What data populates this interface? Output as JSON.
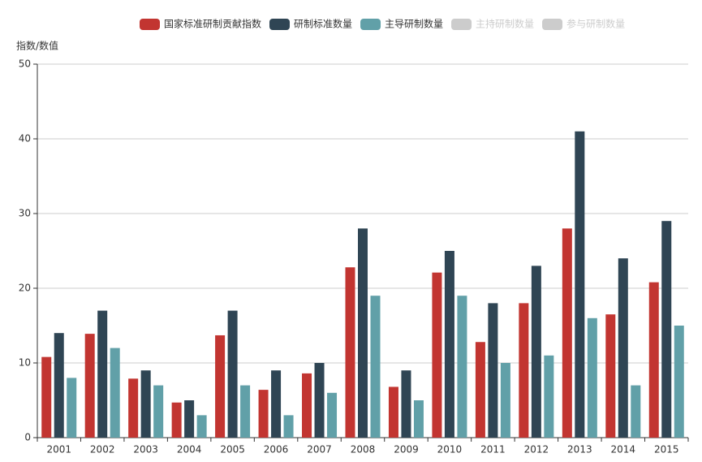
{
  "chart_data": {
    "type": "bar",
    "y_axis_label": "指数/数值",
    "categories": [
      "2001",
      "2002",
      "2003",
      "2004",
      "2005",
      "2006",
      "2007",
      "2008",
      "2009",
      "2010",
      "2011",
      "2012",
      "2013",
      "2014",
      "2015"
    ],
    "series": [
      {
        "name": "国家标准研制贡献指数",
        "color": "#c23531",
        "values": [
          10.8,
          13.9,
          7.9,
          4.7,
          13.7,
          6.4,
          8.6,
          22.8,
          6.8,
          22.1,
          12.8,
          18.0,
          28.0,
          16.5,
          20.8
        ]
      },
      {
        "name": "研制标准数量",
        "color": "#2f4554",
        "values": [
          14,
          17,
          9,
          5,
          17,
          9,
          10,
          28,
          9,
          25,
          18,
          23,
          41,
          24,
          29
        ]
      },
      {
        "name": "主导研制数量",
        "color": "#61a0a8",
        "values": [
          8,
          12,
          7,
          3,
          7,
          3,
          6,
          19,
          5,
          19,
          10,
          11,
          16,
          7,
          15
        ]
      }
    ],
    "legend_inactive": [
      "主持研制数量",
      "参与研制数量"
    ],
    "inactive_color": "#cccccc",
    "ylim": [
      0,
      50
    ],
    "yticks": [
      0,
      10,
      20,
      30,
      40,
      50
    ],
    "grid": true
  }
}
